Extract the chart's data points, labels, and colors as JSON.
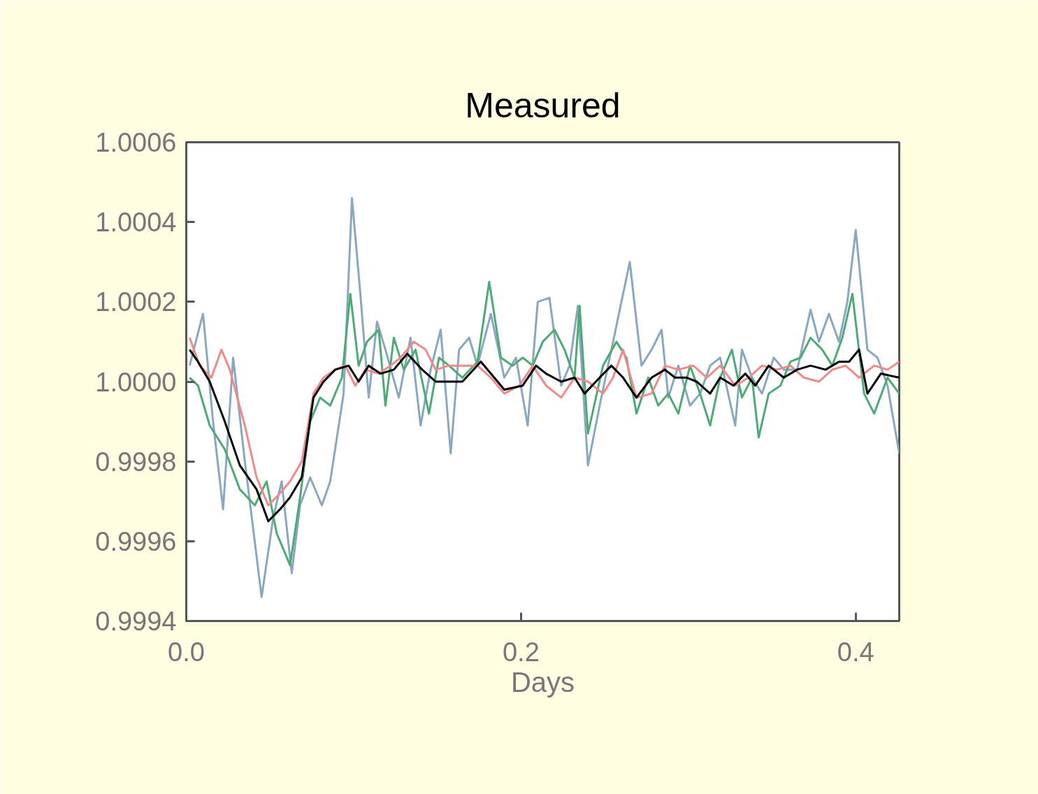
{
  "chart_data": {
    "type": "line",
    "title": "Measured",
    "xlabel": "Days",
    "xlim": [
      0,
      0.426
    ],
    "ylim": [
      0.9994,
      1.0006
    ],
    "xticks": [
      {
        "value": 0,
        "label": "0.0"
      },
      0.2,
      0.4
    ],
    "yticks": [
      {
        "value": 0.9994,
        "label": "0.9994"
      },
      {
        "value": 0.9996,
        "label": "0.9996"
      },
      {
        "value": 0.9998,
        "label": "0.9998"
      },
      {
        "value": 1.0,
        "label": "1.0000"
      },
      {
        "value": 1.0002,
        "label": "1.0002"
      },
      {
        "value": 1.0004,
        "label": "1.0004"
      },
      {
        "value": 1.0006,
        "label": "1.0006"
      }
    ],
    "grid": false,
    "marker": "none",
    "line_style": "solid",
    "series": [
      {
        "color": "#8aa7c0",
        "x": [
          0.002,
          0.01,
          0.016,
          0.022,
          0.028,
          0.035,
          0.045,
          0.052,
          0.057,
          0.063,
          0.068,
          0.074,
          0.081,
          0.086,
          0.094,
          0.099,
          0.104,
          0.109,
          0.114,
          0.119,
          0.127,
          0.134,
          0.14,
          0.146,
          0.152,
          0.158,
          0.163,
          0.169,
          0.174,
          0.182,
          0.19,
          0.197,
          0.204,
          0.21,
          0.217,
          0.224,
          0.229,
          0.234,
          0.24,
          0.247,
          0.253,
          0.259,
          0.265,
          0.272,
          0.278,
          0.284,
          0.288,
          0.294,
          0.301,
          0.307,
          0.313,
          0.319,
          0.328,
          0.332,
          0.338,
          0.344,
          0.351,
          0.357,
          0.365,
          0.373,
          0.378,
          0.384,
          0.39,
          0.395,
          0.4,
          0.407,
          0.413,
          0.419,
          0.426
        ],
        "values": [
          1.00004,
          1.00017,
          0.9999,
          0.99968,
          1.00006,
          0.9998,
          0.99946,
          0.99966,
          0.99975,
          0.99952,
          0.99969,
          0.99976,
          0.99969,
          0.99975,
          0.99997,
          1.00046,
          1.00022,
          0.99996,
          1.00015,
          1.00008,
          0.99996,
          1.00011,
          0.99989,
          1.00003,
          1.00013,
          0.99982,
          1.00008,
          1.00011,
          1.00004,
          1.00017,
          1.00001,
          1.00006,
          0.99989,
          1.0002,
          1.00021,
          0.99999,
          1.00004,
          1.00019,
          0.99979,
          0.99994,
          1.00006,
          1.00018,
          1.0003,
          1.00004,
          1.00008,
          1.00013,
          0.99996,
          1.00004,
          0.99994,
          0.99997,
          1.00004,
          1.00006,
          0.99989,
          1.00008,
          1.00001,
          0.99997,
          1.00006,
          1.00003,
          1.00003,
          1.00018,
          1.0001,
          1.00017,
          1.0001,
          1.0002,
          1.00038,
          1.00008,
          1.00006,
          0.99999,
          0.99982
        ]
      },
      {
        "color": "#4daa74",
        "x": [
          0.002,
          0.007,
          0.014,
          0.023,
          0.032,
          0.041,
          0.048,
          0.054,
          0.062,
          0.068,
          0.074,
          0.08,
          0.086,
          0.093,
          0.098,
          0.103,
          0.108,
          0.115,
          0.119,
          0.124,
          0.13,
          0.137,
          0.145,
          0.151,
          0.157,
          0.165,
          0.174,
          0.181,
          0.188,
          0.195,
          0.201,
          0.207,
          0.213,
          0.22,
          0.226,
          0.232,
          0.235,
          0.24,
          0.249,
          0.257,
          0.263,
          0.269,
          0.276,
          0.282,
          0.288,
          0.294,
          0.301,
          0.307,
          0.313,
          0.319,
          0.326,
          0.332,
          0.338,
          0.342,
          0.348,
          0.355,
          0.361,
          0.367,
          0.373,
          0.38,
          0.386,
          0.392,
          0.398,
          0.405,
          0.411,
          0.419,
          0.426
        ],
        "values": [
          1.00001,
          0.99999,
          0.99989,
          0.99983,
          0.99973,
          0.99969,
          0.99975,
          0.99962,
          0.99954,
          0.99971,
          0.9999,
          0.99996,
          0.99994,
          1.00001,
          1.00022,
          1.00004,
          1.0001,
          1.00013,
          0.99994,
          1.00011,
          1.00003,
          1.00008,
          0.99992,
          1.00006,
          1.00004,
          1.00001,
          1.00005,
          1.00025,
          1.00006,
          1.00004,
          1.00006,
          1.00004,
          1.0001,
          1.00013,
          1.00008,
          1.00001,
          1.00019,
          0.99987,
          1.00004,
          1.0001,
          1.00006,
          0.99992,
          1.00001,
          0.99994,
          0.99997,
          0.99992,
          1.00004,
          0.99997,
          0.99989,
          1.00001,
          1.00008,
          0.99996,
          1.00001,
          0.99986,
          0.99997,
          0.99999,
          1.00005,
          1.00006,
          1.00011,
          1.00008,
          1.00004,
          1.00011,
          1.00022,
          0.99997,
          0.99992,
          1.00001,
          0.99997
        ]
      },
      {
        "color": "#f08a8a",
        "x": [
          0.002,
          0.008,
          0.015,
          0.021,
          0.026,
          0.035,
          0.042,
          0.049,
          0.056,
          0.062,
          0.069,
          0.076,
          0.082,
          0.089,
          0.095,
          0.101,
          0.107,
          0.115,
          0.122,
          0.128,
          0.136,
          0.143,
          0.149,
          0.157,
          0.165,
          0.174,
          0.182,
          0.19,
          0.199,
          0.207,
          0.215,
          0.224,
          0.232,
          0.24,
          0.249,
          0.255,
          0.261,
          0.269,
          0.278,
          0.286,
          0.294,
          0.303,
          0.311,
          0.319,
          0.328,
          0.336,
          0.344,
          0.353,
          0.361,
          0.369,
          0.378,
          0.386,
          0.394,
          0.402,
          0.411,
          0.419,
          0.426
        ],
        "values": [
          1.00011,
          1.00004,
          1.00001,
          1.00008,
          1.00003,
          0.99989,
          0.99976,
          0.99969,
          0.99972,
          0.99975,
          0.9998,
          0.99997,
          1.00001,
          1.00003,
          1.00004,
          0.99999,
          1.00003,
          1.00002,
          1.00004,
          1.00006,
          1.0001,
          1.00008,
          1.00003,
          1.00004,
          1.00004,
          1.00004,
          1.00001,
          0.99997,
          0.99999,
          1.00004,
          0.99999,
          0.99996,
          1.00001,
          1.0,
          0.99997,
          1.00001,
          1.00008,
          0.99996,
          0.99997,
          1.00004,
          1.00003,
          1.00004,
          1.00001,
          1.00004,
          0.99999,
          1.00001,
          1.00004,
          1.00003,
          1.00004,
          1.00001,
          1.0,
          1.00003,
          1.00004,
          1.00001,
          1.00004,
          1.00003,
          1.00005
        ]
      },
      {
        "color": "#000000",
        "x": [
          0.002,
          0.007,
          0.014,
          0.023,
          0.032,
          0.042,
          0.049,
          0.056,
          0.062,
          0.069,
          0.076,
          0.082,
          0.089,
          0.097,
          0.103,
          0.109,
          0.116,
          0.124,
          0.132,
          0.141,
          0.149,
          0.157,
          0.165,
          0.176,
          0.182,
          0.19,
          0.201,
          0.209,
          0.215,
          0.224,
          0.232,
          0.238,
          0.247,
          0.254,
          0.261,
          0.269,
          0.278,
          0.286,
          0.292,
          0.299,
          0.305,
          0.313,
          0.319,
          0.327,
          0.334,
          0.34,
          0.348,
          0.357,
          0.365,
          0.373,
          0.382,
          0.39,
          0.396,
          0.402,
          0.407,
          0.415,
          0.426
        ],
        "values": [
          1.00008,
          1.00005,
          1.0,
          0.9999,
          0.99979,
          0.99973,
          0.99965,
          0.99968,
          0.99971,
          0.99976,
          0.99996,
          1.0,
          1.00003,
          1.00004,
          1.0,
          1.00004,
          1.00002,
          1.00003,
          1.00007,
          1.00003,
          1.0,
          1.0,
          1.0,
          1.00005,
          1.00002,
          0.99998,
          0.99999,
          1.00004,
          1.00002,
          1.0,
          1.00001,
          0.99997,
          1.00001,
          1.00004,
          1.00001,
          0.99996,
          1.00001,
          1.00003,
          1.00001,
          1.00001,
          1.0,
          0.99997,
          1.00001,
          0.99999,
          1.00002,
          0.99999,
          1.00004,
          1.00001,
          1.00003,
          1.00004,
          1.00003,
          1.00005,
          1.00005,
          1.00008,
          0.99997,
          1.00002,
          1.00001
        ]
      }
    ]
  }
}
